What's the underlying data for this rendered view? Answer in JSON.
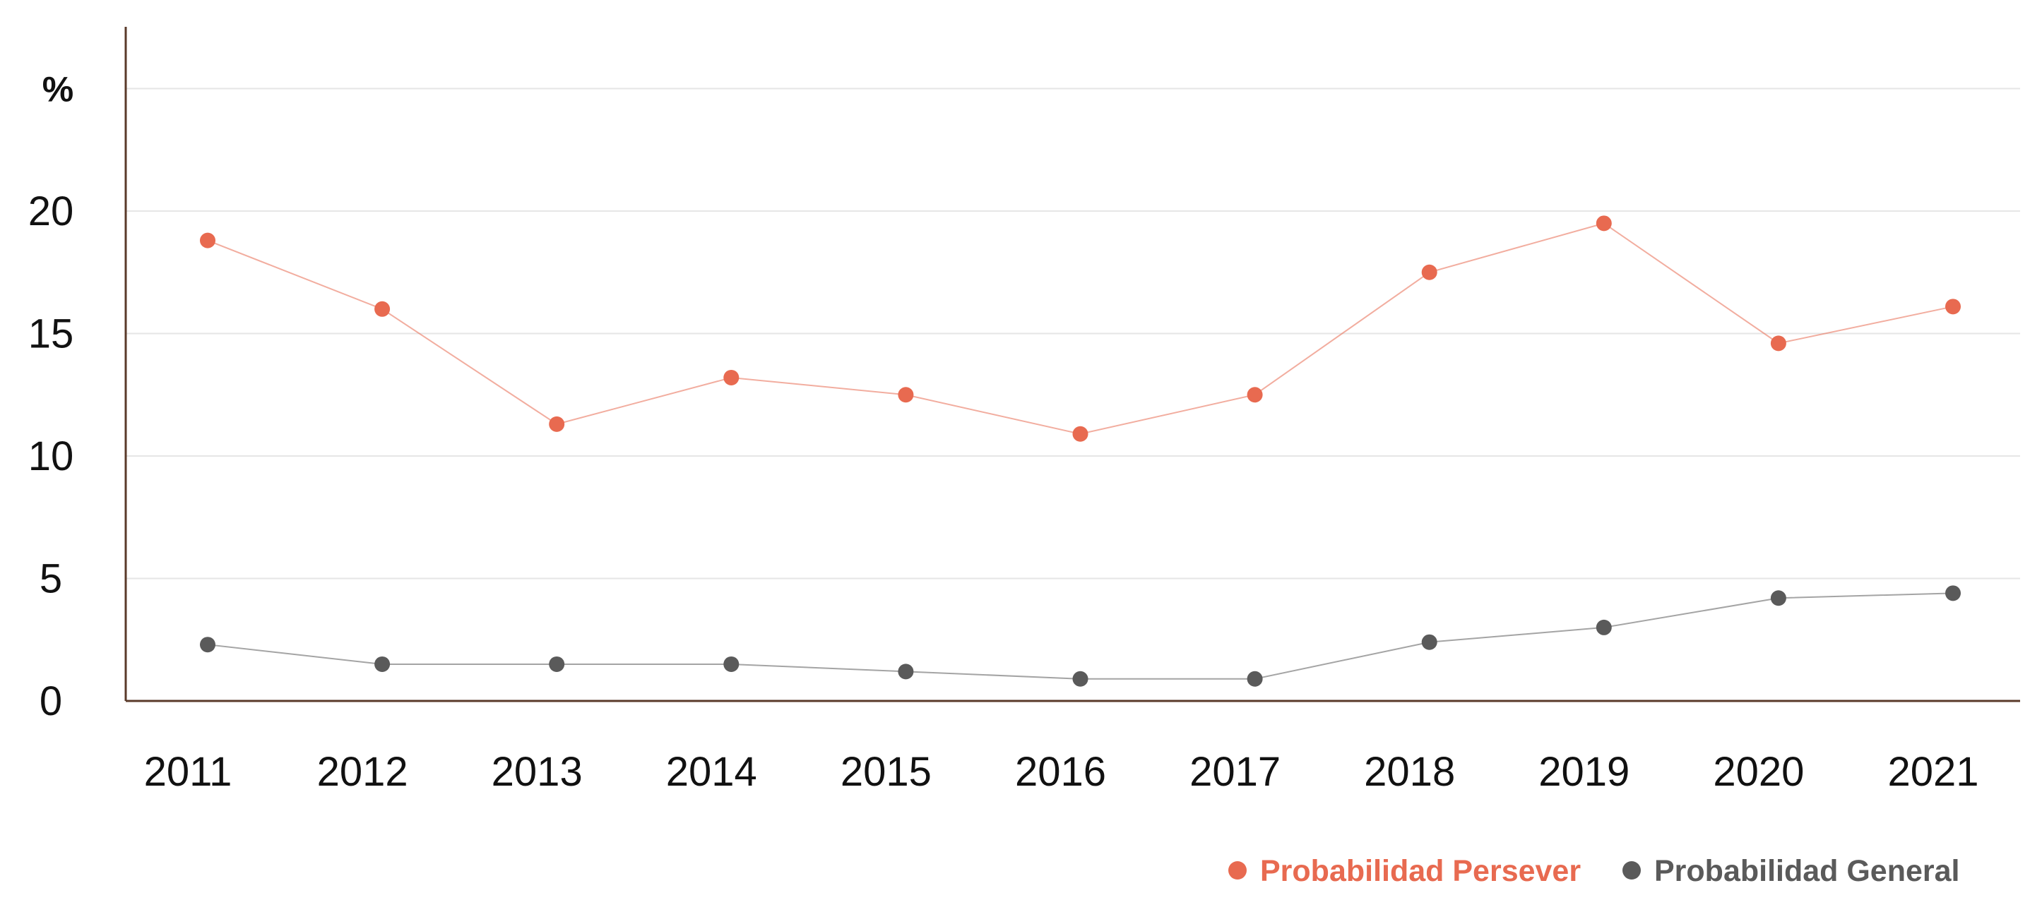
{
  "chart_data": {
    "type": "line",
    "title": "",
    "xlabel": "",
    "ylabel": "%",
    "x": [
      "2011",
      "2012",
      "2013",
      "2014",
      "2015",
      "2016",
      "2017",
      "2018",
      "2019",
      "2020",
      "2021"
    ],
    "yticks": [
      "0",
      "5",
      "10",
      "15",
      "20"
    ],
    "ylim": [
      0,
      25
    ],
    "grid": true,
    "legend_position": "bottom-right",
    "series": [
      {
        "name": "Probabilidad Persever",
        "color": "#e86a50",
        "values": [
          18.8,
          16.0,
          11.3,
          13.2,
          12.5,
          10.9,
          12.5,
          17.5,
          19.5,
          14.6,
          16.1
        ]
      },
      {
        "name": "Probabilidad General",
        "color": "#5a5a5a",
        "values": [
          2.3,
          1.5,
          1.5,
          1.5,
          1.2,
          0.9,
          0.9,
          2.4,
          3.0,
          4.2,
          4.4
        ]
      }
    ]
  }
}
